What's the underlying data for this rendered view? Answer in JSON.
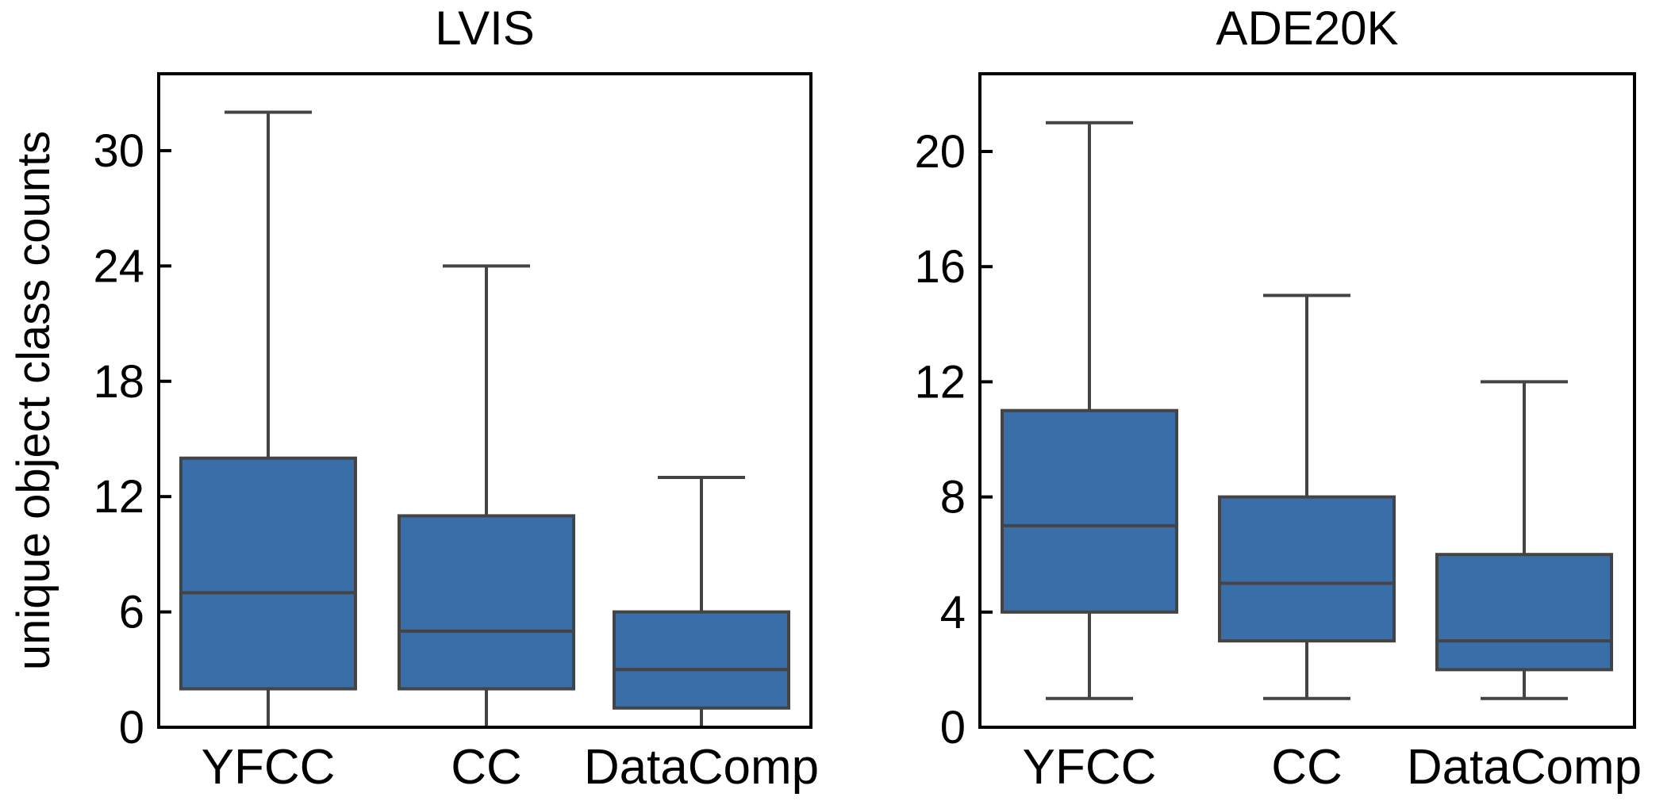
{
  "chart_data": [
    {
      "type": "box",
      "title": "LVIS",
      "ylabel": "unique object class counts",
      "xlabel": "",
      "ylim": [
        0,
        34
      ],
      "yticks": [
        0,
        6,
        12,
        18,
        24,
        30
      ],
      "categories": [
        "YFCC",
        "CC",
        "DataComp"
      ],
      "boxes": [
        {
          "category": "YFCC",
          "whisker_low": 0,
          "q1": 2,
          "median": 7,
          "q3": 14,
          "whisker_high": 32
        },
        {
          "category": "CC",
          "whisker_low": 0,
          "q1": 2,
          "median": 5,
          "q3": 11,
          "whisker_high": 24
        },
        {
          "category": "DataComp",
          "whisker_low": 0,
          "q1": 1,
          "median": 3,
          "q3": 6,
          "whisker_high": 13
        }
      ],
      "grid": false
    },
    {
      "type": "box",
      "title": "ADE20K",
      "ylabel": "",
      "xlabel": "",
      "ylim": [
        0,
        22.7
      ],
      "yticks": [
        0,
        4,
        8,
        12,
        16,
        20
      ],
      "categories": [
        "YFCC",
        "CC",
        "DataComp"
      ],
      "boxes": [
        {
          "category": "YFCC",
          "whisker_low": 1,
          "q1": 4,
          "median": 7,
          "q3": 11,
          "whisker_high": 21
        },
        {
          "category": "CC",
          "whisker_low": 1,
          "q1": 3,
          "median": 5,
          "q3": 8,
          "whisker_high": 15
        },
        {
          "category": "DataComp",
          "whisker_low": 1,
          "q1": 2,
          "median": 3,
          "q3": 6,
          "whisker_high": 12
        }
      ],
      "grid": false
    }
  ],
  "colors": {
    "box_fill": "#3a6ea8",
    "box_edge": "#444444",
    "axes": "#000000"
  }
}
